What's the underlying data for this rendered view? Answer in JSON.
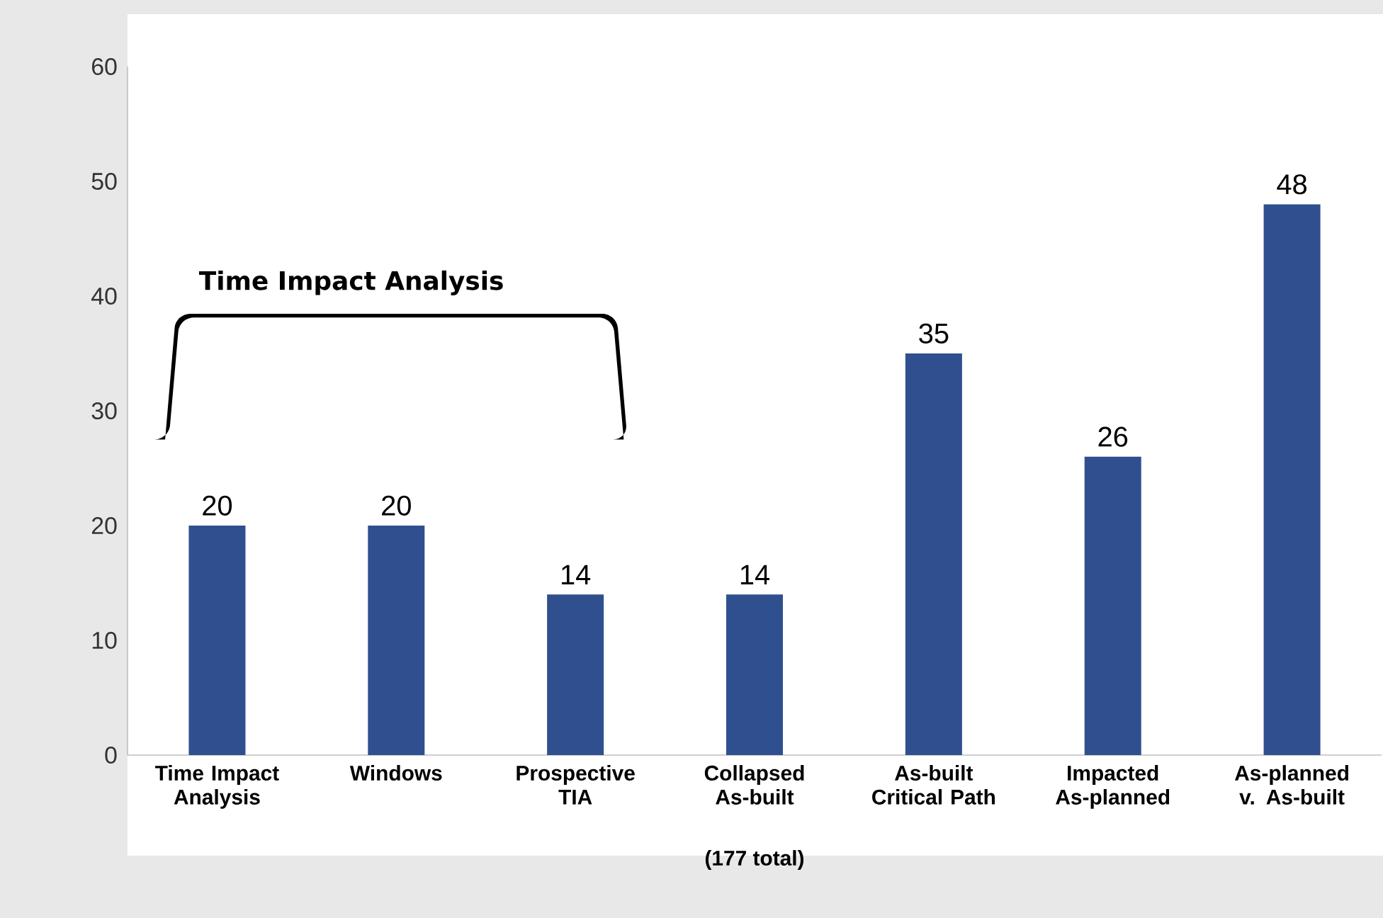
{
  "chart_data": {
    "type": "bar",
    "categories": [
      "Time Impact Analysis",
      "Windows",
      "Prospective TIA",
      "Collapsed As-built",
      "As-built Critical Path",
      "Impacted As-planned",
      "As-planned v. As-built"
    ],
    "values": [
      20,
      20,
      14,
      14,
      35,
      26,
      48
    ],
    "color": "#2f4f8e",
    "ylim": [
      0,
      60
    ],
    "yticks": [
      0,
      10,
      20,
      30,
      40,
      50,
      60
    ],
    "grid": false,
    "data_labels": true,
    "annotations": [
      "Time Impact Analysis",
      "(177 total)"
    ]
  }
}
